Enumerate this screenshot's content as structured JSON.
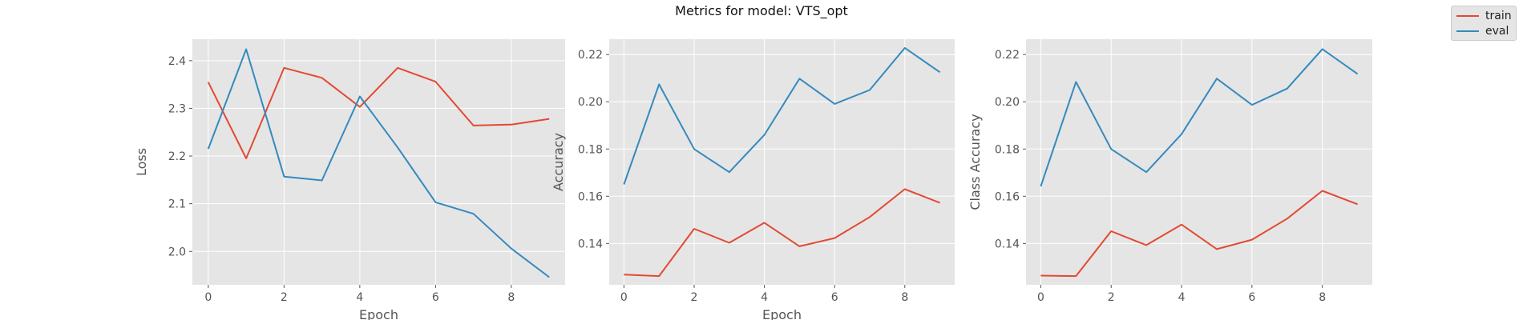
{
  "figure": {
    "title": "Metrics for model: VTS_opt"
  },
  "colors": {
    "train": "#E24A33",
    "eval": "#348ABD",
    "panel_bg": "#E5E5E5",
    "grid": "#FFFFFF",
    "tick_text": "#555555"
  },
  "legend": [
    {
      "name": "train",
      "color": "#E24A33"
    },
    {
      "name": "eval",
      "color": "#348ABD"
    }
  ],
  "chart_data": [
    {
      "type": "line",
      "title": "",
      "xlabel": "Epoch",
      "ylabel": "Loss",
      "xlim": [
        -0.42,
        9.42
      ],
      "ylim": [
        1.93,
        2.445
      ],
      "xticks": [
        0,
        2,
        4,
        6,
        8
      ],
      "yticks": [
        2.0,
        2.1,
        2.2,
        2.3,
        2.4
      ],
      "ytick_labels": [
        "2.0",
        "2.1",
        "2.2",
        "2.3",
        "2.4"
      ],
      "grid": true,
      "x": [
        0,
        1,
        2,
        3,
        4,
        5,
        6,
        7,
        8,
        9
      ],
      "series": [
        {
          "name": "train",
          "values": [
            2.355,
            2.195,
            2.385,
            2.364,
            2.303,
            2.385,
            2.356,
            2.264,
            2.266,
            2.278
          ]
        },
        {
          "name": "eval",
          "values": [
            2.215,
            2.424,
            2.157,
            2.149,
            2.325,
            2.218,
            2.103,
            2.079,
            2.006,
            1.946
          ]
        }
      ]
    },
    {
      "type": "line",
      "title": "",
      "xlabel": "Epoch",
      "ylabel": "Accuracy",
      "xlim": [
        -0.42,
        9.42
      ],
      "ylim": [
        0.1225,
        0.2265
      ],
      "xticks": [
        0,
        2,
        4,
        6,
        8
      ],
      "yticks": [
        0.14,
        0.16,
        0.18,
        0.2,
        0.22
      ],
      "ytick_labels": [
        "0.14",
        "0.16",
        "0.18",
        "0.20",
        "0.22"
      ],
      "grid": true,
      "x": [
        0,
        1,
        2,
        3,
        4,
        5,
        6,
        7,
        8,
        9
      ],
      "series": [
        {
          "name": "train",
          "values": [
            0.1268,
            0.1262,
            0.1462,
            0.1403,
            0.1488,
            0.1388,
            0.1423,
            0.1512,
            0.163,
            0.1572
          ]
        },
        {
          "name": "eval",
          "values": [
            0.165,
            0.2074,
            0.18,
            0.1702,
            0.186,
            0.2098,
            0.1991,
            0.205,
            0.2228,
            0.2125
          ]
        }
      ]
    },
    {
      "type": "line",
      "title": "",
      "xlabel": "",
      "ylabel": "Class Accuracy",
      "xlim": [
        -0.42,
        9.42
      ],
      "ylim": [
        0.1225,
        0.2265
      ],
      "xticks": [
        0,
        2,
        4,
        6,
        8
      ],
      "yticks": [
        0.14,
        0.16,
        0.18,
        0.2,
        0.22
      ],
      "ytick_labels": [
        "0.14",
        "0.16",
        "0.18",
        "0.20",
        "0.22"
      ],
      "grid": true,
      "x": [
        0,
        1,
        2,
        3,
        4,
        5,
        6,
        7,
        8,
        9
      ],
      "series": [
        {
          "name": "train",
          "values": [
            0.1264,
            0.1262,
            0.1452,
            0.1393,
            0.148,
            0.1376,
            0.1416,
            0.1505,
            0.1623,
            0.1566
          ]
        },
        {
          "name": "eval",
          "values": [
            0.1642,
            0.2084,
            0.18,
            0.1702,
            0.1863,
            0.2098,
            0.1987,
            0.2056,
            0.2223,
            0.2118
          ]
        }
      ]
    }
  ]
}
